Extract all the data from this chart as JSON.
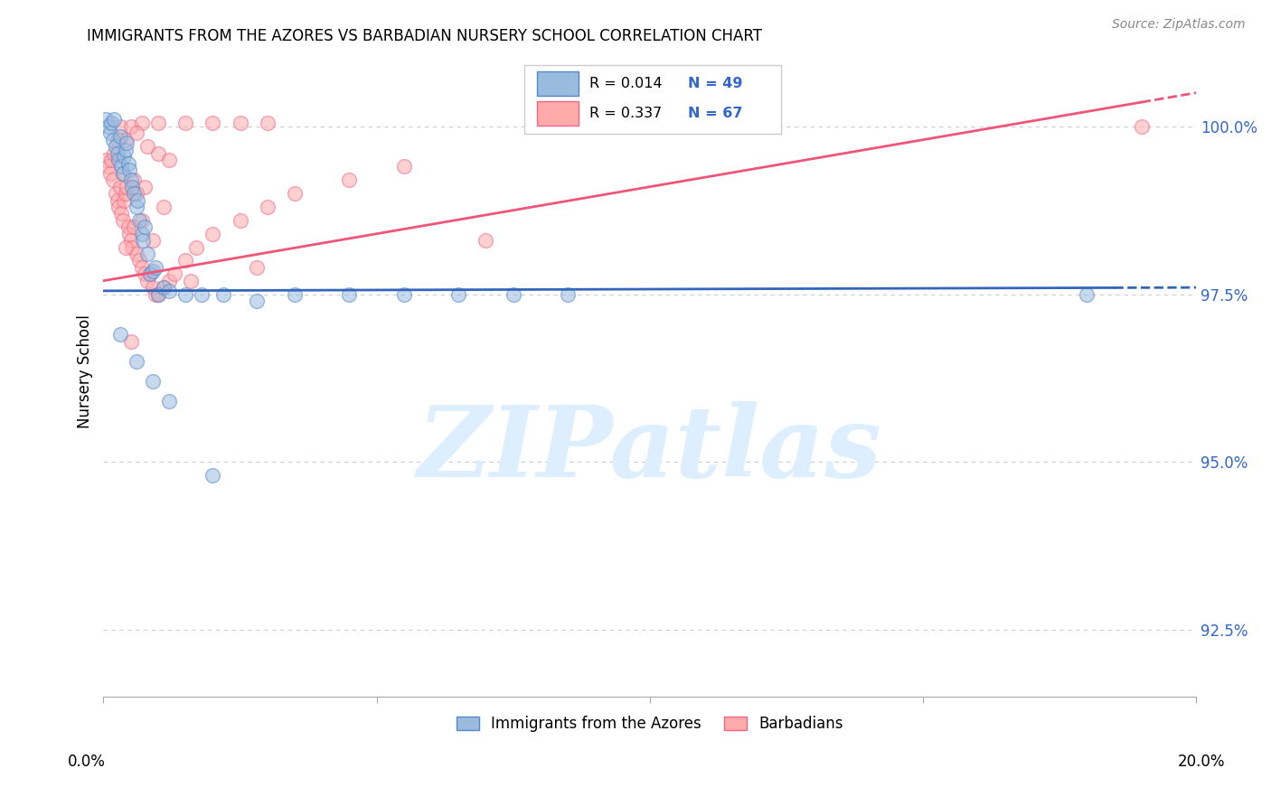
{
  "title": "IMMIGRANTS FROM THE AZORES VS BARBADIAN NURSERY SCHOOL CORRELATION CHART",
  "source": "Source: ZipAtlas.com",
  "ylabel": "Nursery School",
  "yticks": [
    92.5,
    95.0,
    97.5,
    100.0
  ],
  "ytick_labels": [
    "92.5%",
    "95.0%",
    "97.5%",
    "100.0%"
  ],
  "xmin": 0.0,
  "xmax": 20.0,
  "ymin": 91.5,
  "ymax": 101.2,
  "blue_color": "#99BBDD",
  "pink_color": "#FFAAAA",
  "blue_edge_color": "#5588CC",
  "pink_edge_color": "#EE6688",
  "blue_line_color": "#3366BB",
  "pink_line_color": "#EE5577",
  "watermark_text": "ZIPatlas",
  "watermark_color": "#DDEEFF",
  "blue_scatter_x": [
    0.05,
    0.1,
    0.12,
    0.15,
    0.18,
    0.2,
    0.22,
    0.25,
    0.28,
    0.3,
    0.32,
    0.35,
    0.38,
    0.4,
    0.42,
    0.45,
    0.48,
    0.5,
    0.52,
    0.55,
    0.6,
    0.62,
    0.65,
    0.7,
    0.72,
    0.75,
    0.8,
    0.85,
    0.9,
    0.95,
    1.0,
    1.1,
    1.2,
    1.5,
    1.8,
    2.2,
    2.8,
    3.5,
    4.5,
    5.5,
    6.5,
    7.5,
    8.5,
    18.0,
    0.3,
    0.6,
    0.9,
    1.2,
    2.0
  ],
  "blue_scatter_y": [
    100.1,
    100.0,
    99.9,
    100.05,
    99.8,
    100.1,
    99.7,
    99.6,
    99.5,
    99.85,
    99.4,
    99.3,
    99.55,
    99.65,
    99.75,
    99.45,
    99.35,
    99.2,
    99.1,
    99.0,
    98.8,
    98.9,
    98.6,
    98.4,
    98.3,
    98.5,
    98.1,
    97.8,
    97.85,
    97.9,
    97.5,
    97.6,
    97.55,
    97.5,
    97.5,
    97.5,
    97.4,
    97.5,
    97.5,
    97.5,
    97.5,
    97.5,
    97.5,
    97.5,
    96.9,
    96.5,
    96.2,
    95.9,
    94.8
  ],
  "pink_scatter_x": [
    0.05,
    0.1,
    0.12,
    0.15,
    0.18,
    0.2,
    0.22,
    0.25,
    0.28,
    0.3,
    0.32,
    0.35,
    0.38,
    0.4,
    0.42,
    0.45,
    0.48,
    0.5,
    0.52,
    0.55,
    0.6,
    0.65,
    0.7,
    0.75,
    0.8,
    0.85,
    0.9,
    0.95,
    1.0,
    1.1,
    1.2,
    1.3,
    1.5,
    1.7,
    2.0,
    2.5,
    3.0,
    3.5,
    4.5,
    5.5,
    0.3,
    0.5,
    0.7,
    1.0,
    1.5,
    2.0,
    2.5,
    3.0,
    0.4,
    0.6,
    0.8,
    1.0,
    1.2,
    0.35,
    0.55,
    0.75,
    19.0,
    7.0,
    0.25,
    0.6,
    0.4,
    0.7,
    1.1,
    0.9,
    2.8,
    1.6,
    0.5
  ],
  "pink_scatter_y": [
    99.5,
    99.4,
    99.3,
    99.5,
    99.2,
    99.6,
    99.0,
    98.9,
    98.8,
    99.1,
    98.7,
    98.6,
    98.9,
    99.0,
    99.1,
    98.5,
    98.4,
    98.3,
    98.2,
    98.5,
    98.1,
    98.0,
    97.9,
    97.8,
    97.7,
    97.8,
    97.6,
    97.5,
    97.5,
    97.6,
    97.7,
    97.8,
    98.0,
    98.2,
    98.4,
    98.6,
    98.8,
    99.0,
    99.2,
    99.4,
    100.0,
    100.0,
    100.05,
    100.05,
    100.05,
    100.05,
    100.05,
    100.05,
    99.8,
    99.9,
    99.7,
    99.6,
    99.5,
    99.3,
    99.2,
    99.1,
    100.0,
    98.3,
    99.8,
    99.0,
    98.2,
    98.6,
    98.8,
    98.3,
    97.9,
    97.7,
    96.8
  ],
  "blue_line_x0": 0.0,
  "blue_line_x1": 20.0,
  "blue_line_y0": 97.55,
  "blue_line_y1": 97.6,
  "blue_dash_start": 18.5,
  "pink_line_x0": 0.0,
  "pink_line_x1": 20.0,
  "pink_line_y0": 97.7,
  "pink_line_y1": 100.5,
  "pink_dash_start": 19.0
}
